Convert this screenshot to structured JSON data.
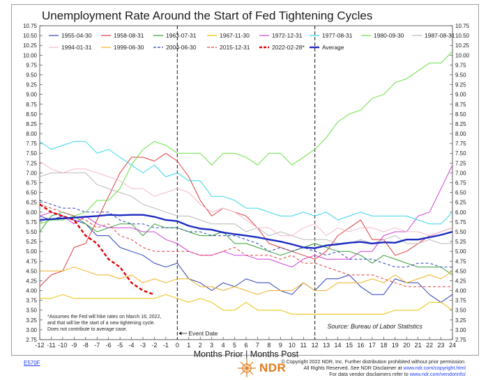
{
  "chart_data": {
    "type": "line",
    "title": "Unemployment Rate Around the Start of Fed Tightening Cycles",
    "xlabel": "Months Prior | Months Post",
    "ylabel": "",
    "x": [
      -12,
      -11,
      -10,
      -9,
      -8,
      -7,
      -6,
      -5,
      -4,
      -3,
      -2,
      -1,
      0,
      1,
      2,
      3,
      4,
      5,
      6,
      7,
      8,
      9,
      10,
      11,
      12,
      13,
      14,
      15,
      16,
      17,
      18,
      19,
      20,
      21,
      22,
      23,
      24
    ],
    "xlim": [
      -12,
      24
    ],
    "ylim": [
      2.75,
      10.75
    ],
    "ytick_step": 0.25,
    "grid": false,
    "vlines": [
      {
        "x": 0,
        "label": "Event Date"
      },
      {
        "x": 12,
        "label": ""
      }
    ],
    "source": "Source:   Bureau of Labor Statistics",
    "note": [
      "*Assumes the Fed will hike rates on March 16, 2022,",
      "and that will be the start of a new tightening cycle.",
      "Does not contribute to average case."
    ],
    "series": [
      {
        "name": "1955-04-30",
        "color": "#2b3fb5",
        "dash": "solid",
        "width": 1,
        "values": [
          5.9,
          5.8,
          5.9,
          5.8,
          5.7,
          5.4,
          5.4,
          5.1,
          5.0,
          4.9,
          4.7,
          4.6,
          4.7,
          4.3,
          4.2,
          4.0,
          4.2,
          4.1,
          4.3,
          4.2,
          4.2,
          4.0,
          3.9,
          4.2,
          4.0,
          4.3,
          4.3,
          4.4,
          4.1,
          3.9,
          3.9,
          4.3,
          4.2,
          4.2,
          3.9,
          3.7,
          3.9
        ]
      },
      {
        "name": "1958-08-31",
        "color": "#e03a3a",
        "dash": "solid",
        "width": 1,
        "values": [
          4.1,
          4.4,
          4.5,
          5.1,
          5.2,
          5.8,
          6.4,
          7.0,
          7.4,
          7.4,
          7.3,
          7.5,
          7.3,
          6.9,
          6.3,
          5.9,
          6.1,
          6.0,
          5.9,
          5.6,
          5.2,
          5.1,
          5.0,
          4.9,
          4.8,
          5.0,
          5.4,
          5.6,
          5.8,
          5.3,
          5.3,
          4.9,
          5.0,
          5.2,
          5.4,
          5.5,
          5.6
        ]
      },
      {
        "name": "1963-07-31",
        "color": "#30a030",
        "dash": "solid",
        "width": 1,
        "values": [
          5.5,
          5.9,
          6.0,
          5.9,
          5.7,
          5.5,
          5.6,
          5.7,
          5.7,
          5.4,
          5.7,
          5.6,
          5.6,
          5.5,
          5.4,
          5.4,
          5.5,
          5.2,
          5.2,
          5.1,
          5.0,
          4.9,
          5.0,
          5.1,
          5.2,
          5.1,
          5.0,
          5.0,
          4.9,
          4.7,
          4.9,
          4.8,
          4.7,
          4.6,
          4.6,
          4.6,
          4.4
        ]
      },
      {
        "name": "1967-11-30",
        "color": "#e8c000",
        "dash": "solid",
        "width": 1,
        "values": [
          3.8,
          3.8,
          3.9,
          3.8,
          3.8,
          3.8,
          3.8,
          3.8,
          3.8,
          3.8,
          3.8,
          3.9,
          3.8,
          3.7,
          3.8,
          3.7,
          3.5,
          3.5,
          3.7,
          3.5,
          3.5,
          3.5,
          3.4,
          3.4,
          3.4,
          3.4,
          3.4,
          3.4,
          3.4,
          3.4,
          3.4,
          3.5,
          3.5,
          3.5,
          3.7,
          3.7,
          3.5
        ]
      },
      {
        "name": "1972-12-31",
        "color": "#d040d8",
        "dash": "solid",
        "width": 1,
        "values": [
          5.9,
          6.0,
          5.9,
          5.7,
          5.9,
          5.7,
          5.6,
          5.6,
          5.6,
          5.5,
          5.5,
          5.3,
          5.2,
          5.0,
          4.9,
          4.9,
          5.0,
          4.9,
          4.9,
          4.8,
          4.8,
          4.7,
          4.6,
          4.8,
          4.9,
          4.8,
          4.8,
          4.8,
          5.0,
          5.0,
          5.4,
          5.5,
          5.5,
          5.9,
          6.0,
          6.6,
          7.2
        ]
      },
      {
        "name": "1977-08-31",
        "color": "#33d6e8",
        "dash": "solid",
        "width": 1,
        "values": [
          7.8,
          7.6,
          7.7,
          7.8,
          7.8,
          7.5,
          7.6,
          7.4,
          7.2,
          7.0,
          7.2,
          6.9,
          7.0,
          6.8,
          6.8,
          6.4,
          6.4,
          6.3,
          6.1,
          6.1,
          6.0,
          5.9,
          5.9,
          6.0,
          5.9,
          6.0,
          5.8,
          5.9,
          6.0,
          5.9,
          5.9,
          5.9,
          5.9,
          5.8,
          5.7,
          5.7,
          6.0
        ]
      },
      {
        "name": "1980-09-30",
        "color": "#66e040",
        "dash": "solid",
        "width": 1,
        "values": [
          5.7,
          5.8,
          5.8,
          5.9,
          6.0,
          6.3,
          6.3,
          6.6,
          7.2,
          7.6,
          7.8,
          7.7,
          7.5,
          7.5,
          7.5,
          7.2,
          7.5,
          7.5,
          7.4,
          7.2,
          7.5,
          7.5,
          7.2,
          7.4,
          7.6,
          7.9,
          8.3,
          8.5,
          8.6,
          8.9,
          9.0,
          9.3,
          9.4,
          9.6,
          9.8,
          9.8,
          10.1
        ]
      },
      {
        "name": "1987-08-31",
        "color": "#b8b8b8",
        "dash": "solid",
        "width": 1,
        "values": [
          6.9,
          7.0,
          7.0,
          7.0,
          7.0,
          6.7,
          6.6,
          6.5,
          6.4,
          6.2,
          6.1,
          6.0,
          5.9,
          5.9,
          5.8,
          5.7,
          5.7,
          5.7,
          5.5,
          5.6,
          5.4,
          5.5,
          5.4,
          5.3,
          5.3,
          5.3,
          5.2,
          5.2,
          5.3,
          5.2,
          5.3,
          5.4,
          5.2,
          5.2,
          5.3,
          5.2,
          5.2
        ]
      },
      {
        "name": "1994-01-31",
        "color": "#f5b8c8",
        "dash": "solid",
        "width": 1,
        "values": [
          7.3,
          7.1,
          7.0,
          7.1,
          7.1,
          7.0,
          6.9,
          6.8,
          6.6,
          6.6,
          6.4,
          6.5,
          6.6,
          6.5,
          6.2,
          6.0,
          6.1,
          6.0,
          5.8,
          5.6,
          5.6,
          5.4,
          5.4,
          5.6,
          5.7,
          5.4,
          5.6,
          5.5,
          5.6,
          5.6,
          5.5,
          5.6,
          5.5,
          5.5,
          5.4,
          5.5,
          5.6
        ]
      },
      {
        "name": "1999-06-30",
        "color": "#f2b020",
        "dash": "solid",
        "width": 1,
        "values": [
          4.5,
          4.5,
          4.5,
          4.6,
          4.5,
          4.4,
          4.4,
          4.3,
          4.4,
          4.2,
          4.3,
          4.2,
          4.3,
          4.3,
          4.1,
          4.1,
          4.0,
          4.1,
          4.0,
          3.9,
          4.0,
          4.0,
          4.0,
          4.2,
          4.0,
          4.0,
          4.2,
          4.2,
          4.2,
          4.3,
          4.2,
          4.4,
          4.2,
          4.3,
          4.4,
          4.3,
          4.5
        ]
      },
      {
        "name": "2004-06-30",
        "color": "#2b3fb5",
        "dash": "dashed",
        "width": 1,
        "values": [
          6.3,
          6.2,
          6.1,
          6.1,
          6.0,
          6.0,
          6.0,
          5.8,
          5.7,
          5.7,
          5.6,
          5.6,
          5.6,
          5.5,
          5.5,
          5.4,
          5.4,
          5.4,
          5.3,
          5.2,
          5.0,
          5.1,
          5.0,
          5.1,
          5.0,
          4.9,
          5.0,
          4.8,
          4.8,
          4.8,
          4.7,
          4.6,
          4.6,
          4.7,
          4.7,
          4.6,
          4.6
        ]
      },
      {
        "name": "2015-12-31",
        "color": "#e03a3a",
        "dash": "dashed",
        "width": 1,
        "values": [
          6.2,
          6.1,
          6.0,
          5.9,
          5.8,
          5.6,
          5.7,
          5.4,
          5.3,
          5.1,
          5.0,
          5.0,
          5.0,
          5.0,
          4.9,
          4.9,
          5.0,
          5.1,
          4.9,
          4.9,
          4.9,
          4.8,
          4.9,
          4.7,
          4.7,
          4.6,
          4.5,
          4.4,
          4.4,
          4.4,
          4.3,
          4.2,
          4.1,
          4.1,
          4.1,
          4.1,
          4.1
        ]
      },
      {
        "name": "2022-02-28*",
        "color": "#e00000",
        "dash": "dashed",
        "width": 2.4,
        "values": [
          6.2,
          6.0,
          5.9,
          5.8,
          5.4,
          5.2,
          4.8,
          4.6,
          4.2,
          4.0,
          3.9,
          null,
          null,
          null,
          null,
          null,
          null,
          null,
          null,
          null,
          null,
          null,
          null,
          null,
          null,
          null,
          null,
          null,
          null,
          null,
          null,
          null,
          null,
          null,
          null,
          null,
          null
        ]
      },
      {
        "name": "Average",
        "color": "#1a2ac0",
        "dash": "solid",
        "width": 2.4,
        "values": [
          5.8,
          5.82,
          5.84,
          5.86,
          5.88,
          5.9,
          5.93,
          5.92,
          5.93,
          5.93,
          5.88,
          5.8,
          5.77,
          5.65,
          5.58,
          5.55,
          5.48,
          5.44,
          5.4,
          5.36,
          5.3,
          5.25,
          5.18,
          5.1,
          5.08,
          5.15,
          5.18,
          5.22,
          5.24,
          5.2,
          5.23,
          5.22,
          5.3,
          5.3,
          5.36,
          5.42,
          5.5
        ]
      }
    ]
  },
  "footer": {
    "code": "E570F",
    "logo_text": "NDR",
    "disclaimer_line1": "© Copyright 2022 NDR, Inc. Further distribution prohibited without prior permission.",
    "disclaimer_line2_prefix": "All Rights Reserved. See NDR Disclaimer at ",
    "disclaimer_line2_link": "www.ndr.com/copyright.html",
    "disclaimer_line3_prefix": "For data vendor disclaimers refer to ",
    "disclaimer_line3_link": "www.ndr.com/vendorinfo/"
  }
}
